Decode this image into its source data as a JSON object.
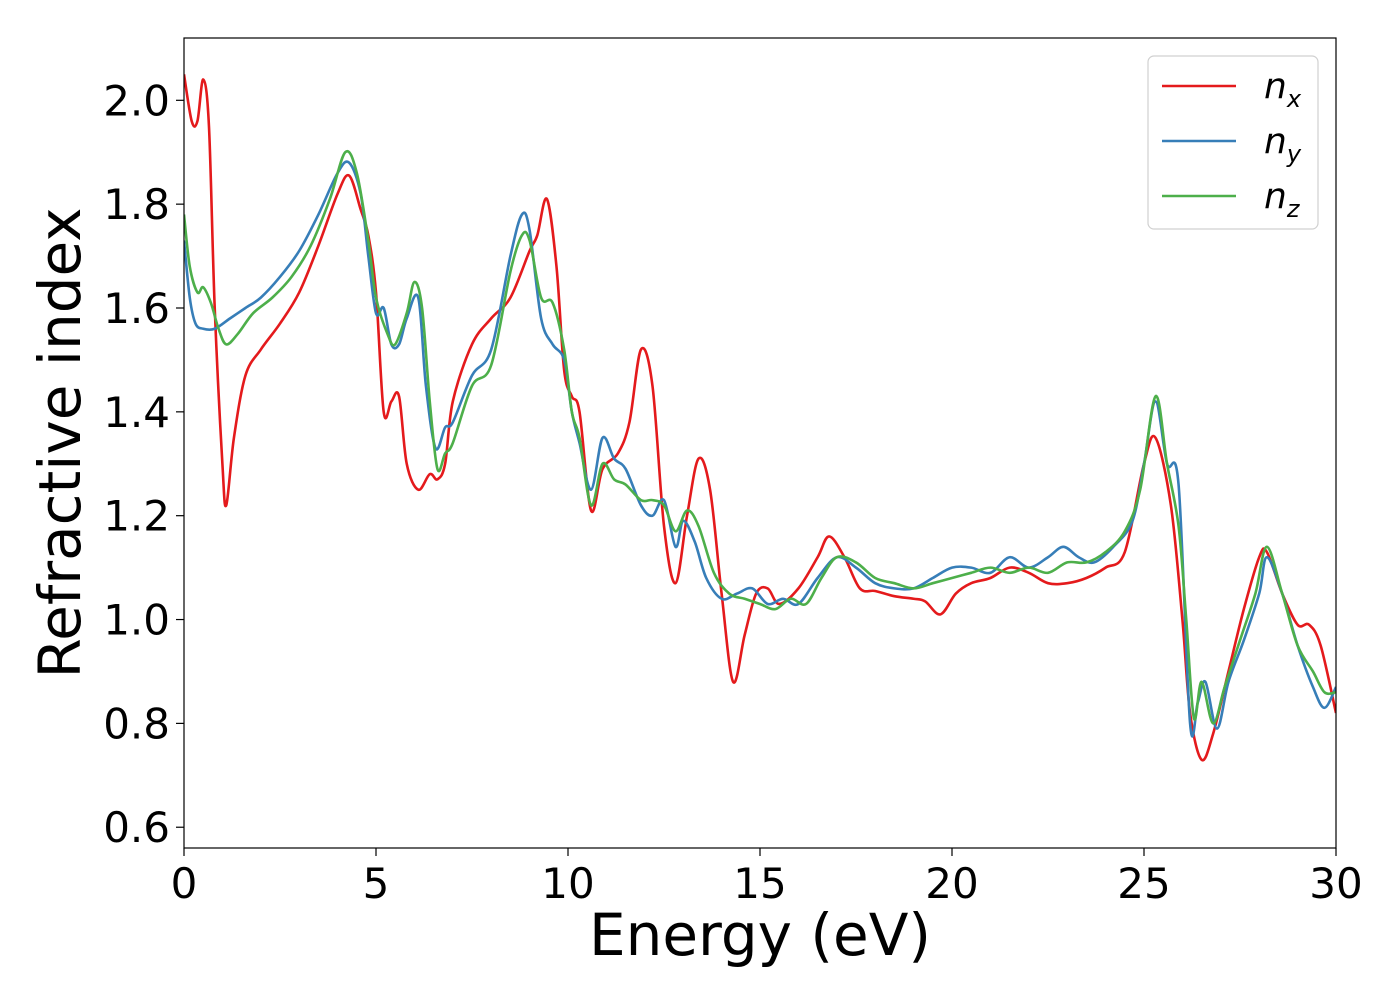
{
  "chart_data": {
    "type": "line",
    "xlabel": "Energy (eV)",
    "ylabel": "Refractive index",
    "xlim": [
      0,
      30
    ],
    "ylim": [
      0.56,
      2.12
    ],
    "xticks": [
      0,
      5,
      10,
      15,
      20,
      25,
      30
    ],
    "xtick_labels": [
      "0",
      "5",
      "10",
      "15",
      "20",
      "25",
      "30"
    ],
    "yticks": [
      0.6,
      0.8,
      1.0,
      1.2,
      1.4,
      1.6,
      1.8,
      2.0
    ],
    "ytick_labels": [
      "0.6",
      "0.8",
      "1.0",
      "1.2",
      "1.4",
      "1.6",
      "1.8",
      "2.0"
    ],
    "grid": false,
    "legend_position": "top-right",
    "series": [
      {
        "name": "n",
        "subscript": "x",
        "color": "#e41a1c",
        "x": [
          0,
          0.2,
          0.35,
          0.5,
          0.65,
          0.8,
          1.0,
          1.1,
          1.3,
          1.6,
          2.0,
          2.5,
          3.0,
          3.5,
          4.0,
          4.3,
          4.6,
          4.8,
          5.0,
          5.2,
          5.4,
          5.6,
          5.8,
          6.1,
          6.4,
          6.6,
          6.8,
          7.0,
          7.5,
          8.0,
          8.5,
          9.0,
          9.2,
          9.45,
          9.7,
          9.9,
          10.1,
          10.3,
          10.6,
          10.9,
          11.3,
          11.6,
          11.9,
          12.2,
          12.5,
          12.8,
          13.1,
          13.4,
          13.7,
          14.0,
          14.3,
          14.6,
          14.9,
          15.2,
          15.5,
          16.0,
          16.5,
          16.8,
          17.2,
          17.6,
          18.0,
          18.5,
          19.0,
          19.3,
          19.7,
          20.1,
          20.5,
          21.0,
          21.5,
          22.0,
          22.5,
          23.0,
          23.5,
          24.0,
          24.5,
          25.0,
          25.3,
          25.7,
          26.0,
          26.2,
          26.5,
          26.8,
          27.2,
          27.6,
          28.0,
          28.2,
          28.6,
          29.0,
          29.3,
          29.6,
          30.0
        ],
        "y": [
          2.05,
          1.96,
          1.96,
          2.04,
          1.95,
          1.6,
          1.3,
          1.22,
          1.35,
          1.47,
          1.52,
          1.57,
          1.63,
          1.72,
          1.82,
          1.855,
          1.79,
          1.74,
          1.63,
          1.4,
          1.42,
          1.43,
          1.3,
          1.25,
          1.28,
          1.27,
          1.3,
          1.42,
          1.53,
          1.58,
          1.62,
          1.71,
          1.74,
          1.81,
          1.68,
          1.48,
          1.43,
          1.4,
          1.21,
          1.29,
          1.32,
          1.38,
          1.52,
          1.45,
          1.18,
          1.07,
          1.2,
          1.31,
          1.25,
          1.05,
          0.88,
          0.97,
          1.05,
          1.06,
          1.03,
          1.06,
          1.12,
          1.16,
          1.12,
          1.06,
          1.055,
          1.045,
          1.04,
          1.035,
          1.01,
          1.05,
          1.07,
          1.08,
          1.1,
          1.09,
          1.07,
          1.07,
          1.08,
          1.1,
          1.13,
          1.3,
          1.35,
          1.22,
          1.0,
          0.82,
          0.73,
          0.78,
          0.9,
          1.02,
          1.12,
          1.13,
          1.05,
          0.99,
          0.99,
          0.95,
          0.82
        ]
      },
      {
        "name": "n",
        "subscript": "y",
        "color": "#377eb8",
        "x": [
          0,
          0.15,
          0.3,
          0.5,
          0.8,
          1.2,
          1.6,
          2.0,
          2.5,
          3.0,
          3.5,
          4.0,
          4.3,
          4.6,
          4.8,
          5.0,
          5.2,
          5.4,
          5.6,
          5.8,
          6.1,
          6.3,
          6.55,
          6.8,
          7.0,
          7.5,
          8.0,
          8.5,
          8.8,
          9.0,
          9.3,
          9.6,
          9.9,
          10.1,
          10.3,
          10.6,
          10.9,
          11.2,
          11.5,
          11.9,
          12.2,
          12.5,
          12.8,
          13.0,
          13.3,
          13.6,
          14.0,
          14.4,
          14.8,
          15.2,
          15.6,
          16.0,
          16.5,
          17.0,
          17.5,
          18.0,
          18.5,
          19.0,
          19.5,
          20.0,
          20.5,
          21.0,
          21.5,
          22.0,
          22.5,
          22.9,
          23.3,
          23.7,
          24.2,
          24.7,
          25.0,
          25.3,
          25.6,
          25.9,
          26.2,
          26.4,
          26.6,
          26.9,
          27.2,
          27.6,
          28.0,
          28.2,
          28.6,
          29.0,
          29.4,
          29.7,
          30.0
        ],
        "y": [
          1.73,
          1.62,
          1.57,
          1.56,
          1.56,
          1.58,
          1.6,
          1.62,
          1.66,
          1.71,
          1.78,
          1.86,
          1.88,
          1.82,
          1.7,
          1.59,
          1.6,
          1.53,
          1.53,
          1.58,
          1.62,
          1.45,
          1.33,
          1.37,
          1.38,
          1.47,
          1.52,
          1.7,
          1.78,
          1.75,
          1.58,
          1.53,
          1.5,
          1.4,
          1.34,
          1.25,
          1.35,
          1.31,
          1.29,
          1.22,
          1.2,
          1.23,
          1.14,
          1.19,
          1.15,
          1.08,
          1.04,
          1.05,
          1.06,
          1.03,
          1.04,
          1.03,
          1.08,
          1.12,
          1.1,
          1.07,
          1.06,
          1.06,
          1.08,
          1.1,
          1.1,
          1.09,
          1.12,
          1.1,
          1.12,
          1.14,
          1.12,
          1.11,
          1.14,
          1.19,
          1.3,
          1.42,
          1.3,
          1.26,
          0.8,
          0.84,
          0.88,
          0.79,
          0.88,
          0.96,
          1.05,
          1.12,
          1.05,
          0.95,
          0.87,
          0.83,
          0.87
        ]
      },
      {
        "name": "n",
        "subscript": "z",
        "color": "#4daf4a",
        "x": [
          0,
          0.15,
          0.35,
          0.5,
          0.7,
          0.9,
          1.1,
          1.4,
          1.8,
          2.3,
          2.8,
          3.3,
          3.8,
          4.2,
          4.5,
          4.8,
          5.0,
          5.3,
          5.5,
          5.8,
          6.0,
          6.2,
          6.4,
          6.6,
          6.8,
          7.0,
          7.5,
          8.0,
          8.5,
          8.8,
          9.0,
          9.3,
          9.6,
          9.9,
          10.1,
          10.3,
          10.6,
          10.9,
          11.2,
          11.5,
          11.9,
          12.2,
          12.5,
          12.8,
          13.1,
          13.4,
          13.8,
          14.2,
          14.6,
          15.0,
          15.4,
          15.8,
          16.2,
          16.6,
          17.0,
          17.5,
          18.0,
          18.5,
          19.0,
          19.5,
          20.0,
          20.5,
          21.0,
          21.5,
          22.0,
          22.5,
          23.0,
          23.5,
          24.0,
          24.5,
          24.9,
          25.3,
          25.6,
          25.9,
          26.1,
          26.3,
          26.5,
          26.8,
          27.1,
          27.5,
          27.9,
          28.2,
          28.6,
          29.0,
          29.4,
          29.7,
          30.0
        ],
        "y": [
          1.78,
          1.68,
          1.63,
          1.64,
          1.61,
          1.56,
          1.53,
          1.55,
          1.59,
          1.62,
          1.66,
          1.72,
          1.81,
          1.9,
          1.86,
          1.73,
          1.62,
          1.55,
          1.53,
          1.59,
          1.65,
          1.6,
          1.42,
          1.29,
          1.32,
          1.34,
          1.45,
          1.49,
          1.67,
          1.74,
          1.73,
          1.62,
          1.61,
          1.52,
          1.4,
          1.35,
          1.22,
          1.3,
          1.27,
          1.26,
          1.23,
          1.23,
          1.22,
          1.17,
          1.21,
          1.18,
          1.09,
          1.05,
          1.04,
          1.03,
          1.02,
          1.04,
          1.03,
          1.08,
          1.12,
          1.11,
          1.08,
          1.07,
          1.06,
          1.07,
          1.08,
          1.09,
          1.1,
          1.09,
          1.1,
          1.09,
          1.11,
          1.11,
          1.13,
          1.17,
          1.25,
          1.43,
          1.3,
          1.18,
          1.0,
          0.81,
          0.88,
          0.8,
          0.87,
          0.96,
          1.05,
          1.14,
          1.05,
          0.95,
          0.9,
          0.86,
          0.86
        ]
      }
    ]
  }
}
